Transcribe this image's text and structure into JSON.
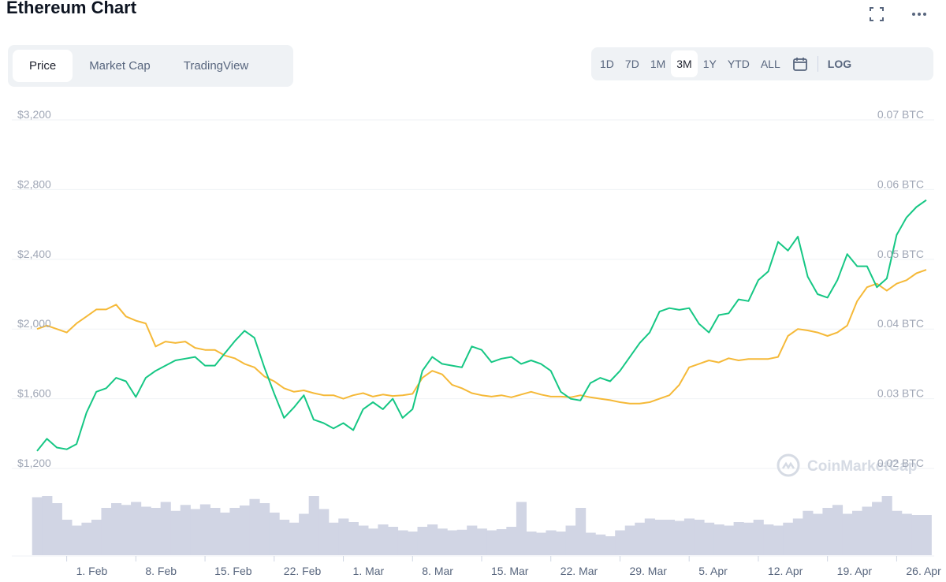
{
  "header": {
    "title": "Ethereum Chart",
    "expand_icon": "expand-icon",
    "more_icon": "more-dots-icon"
  },
  "tabs": [
    {
      "label": "Price",
      "active": true
    },
    {
      "label": "Market Cap",
      "active": false
    },
    {
      "label": "TradingView",
      "active": false
    }
  ],
  "ranges": [
    {
      "label": "1D",
      "active": false
    },
    {
      "label": "7D",
      "active": false
    },
    {
      "label": "1M",
      "active": false
    },
    {
      "label": "3M",
      "active": true
    },
    {
      "label": "1Y",
      "active": false
    },
    {
      "label": "YTD",
      "active": false
    },
    {
      "label": "ALL",
      "active": false
    }
  ],
  "calendar_icon": "calendar-icon",
  "log_label": "LOG",
  "watermark": "CoinMarketCap",
  "colors": {
    "price_line": "#16c784",
    "btc_line": "#f5b938",
    "volume_bars": "#d1d5e4",
    "grid": "#eff2f5"
  },
  "chart_data": {
    "type": "line",
    "grid": true,
    "x_tick_labels": [
      "1. Feb",
      "8. Feb",
      "15. Feb",
      "22. Feb",
      "1. Mar",
      "8. Mar",
      "15. Mar",
      "22. Mar",
      "29. Mar",
      "5. Apr",
      "12. Apr",
      "19. Apr",
      "26. Apr"
    ],
    "x_range": [
      "2021-01-29",
      "2021-04-29"
    ],
    "y_left": {
      "ticks": [
        "$1,200",
        "$1,600",
        "$2,000",
        "$2,400",
        "$2,800",
        "$3,200"
      ],
      "range": [
        1200,
        3200
      ]
    },
    "y_right": {
      "ticks": [
        "0.02 BTC",
        "0.03 BTC",
        "0.04 BTC",
        "0.05 BTC",
        "0.06 BTC",
        "0.07 BTC"
      ],
      "range": [
        0.02,
        0.07
      ]
    },
    "series": [
      {
        "axis": "left",
        "x": [
          "2021-01-29",
          "2021-01-30",
          "2021-01-31",
          "2021-02-01",
          "2021-02-02",
          "2021-02-03",
          "2021-02-04",
          "2021-02-05",
          "2021-02-06",
          "2021-02-07",
          "2021-02-08",
          "2021-02-09",
          "2021-02-10",
          "2021-02-11",
          "2021-02-12",
          "2021-02-13",
          "2021-02-14",
          "2021-02-15",
          "2021-02-16",
          "2021-02-17",
          "2021-02-18",
          "2021-02-19",
          "2021-02-20",
          "2021-02-21",
          "2021-02-22",
          "2021-02-23",
          "2021-02-24",
          "2021-02-25",
          "2021-02-26",
          "2021-02-27",
          "2021-02-28",
          "2021-03-01",
          "2021-03-02",
          "2021-03-03",
          "2021-03-04",
          "2021-03-05",
          "2021-03-06",
          "2021-03-07",
          "2021-03-08",
          "2021-03-09",
          "2021-03-10",
          "2021-03-11",
          "2021-03-12",
          "2021-03-13",
          "2021-03-14",
          "2021-03-15",
          "2021-03-16",
          "2021-03-17",
          "2021-03-18",
          "2021-03-19",
          "2021-03-20",
          "2021-03-21",
          "2021-03-22",
          "2021-03-23",
          "2021-03-24",
          "2021-03-25",
          "2021-03-26",
          "2021-03-27",
          "2021-03-28",
          "2021-03-29",
          "2021-03-30",
          "2021-03-31",
          "2021-04-01",
          "2021-04-02",
          "2021-04-03",
          "2021-04-04",
          "2021-04-05",
          "2021-04-06",
          "2021-04-07",
          "2021-04-08",
          "2021-04-09",
          "2021-04-10",
          "2021-04-11",
          "2021-04-12",
          "2021-04-13",
          "2021-04-14",
          "2021-04-15",
          "2021-04-16",
          "2021-04-17",
          "2021-04-18",
          "2021-04-19",
          "2021-04-20",
          "2021-04-21",
          "2021-04-22",
          "2021-04-23",
          "2021-04-24",
          "2021-04-25",
          "2021-04-26",
          "2021-04-27",
          "2021-04-28",
          "2021-04-29"
        ],
        "y": [
          1300,
          1370,
          1320,
          1310,
          1340,
          1520,
          1640,
          1660,
          1720,
          1700,
          1610,
          1720,
          1760,
          1790,
          1820,
          1830,
          1840,
          1790,
          1790,
          1860,
          1930,
          1990,
          1950,
          1780,
          1630,
          1490,
          1550,
          1620,
          1480,
          1460,
          1430,
          1460,
          1420,
          1540,
          1580,
          1540,
          1600,
          1490,
          1540,
          1760,
          1840,
          1800,
          1790,
          1780,
          1900,
          1880,
          1810,
          1830,
          1840,
          1800,
          1820,
          1800,
          1760,
          1640,
          1600,
          1590,
          1690,
          1720,
          1700,
          1760,
          1840,
          1920,
          1980,
          2100,
          2120,
          2110,
          2120,
          2030,
          1980,
          2080,
          2090,
          2170,
          2160,
          2280,
          2330,
          2500,
          2450,
          2530,
          2300,
          2200,
          2180,
          2280,
          2430,
          2360,
          2360,
          2240,
          2290,
          2540,
          2640,
          2700,
          2740
        ]
      },
      {
        "axis": "right",
        "x": [
          "2021-01-29",
          "2021-01-30",
          "2021-01-31",
          "2021-02-01",
          "2021-02-02",
          "2021-02-03",
          "2021-02-04",
          "2021-02-05",
          "2021-02-06",
          "2021-02-07",
          "2021-02-08",
          "2021-02-09",
          "2021-02-10",
          "2021-02-11",
          "2021-02-12",
          "2021-02-13",
          "2021-02-14",
          "2021-02-15",
          "2021-02-16",
          "2021-02-17",
          "2021-02-18",
          "2021-02-19",
          "2021-02-20",
          "2021-02-21",
          "2021-02-22",
          "2021-02-23",
          "2021-02-24",
          "2021-02-25",
          "2021-02-26",
          "2021-02-27",
          "2021-02-28",
          "2021-03-01",
          "2021-03-02",
          "2021-03-03",
          "2021-03-04",
          "2021-03-05",
          "2021-03-06",
          "2021-03-07",
          "2021-03-08",
          "2021-03-09",
          "2021-03-10",
          "2021-03-11",
          "2021-03-12",
          "2021-03-13",
          "2021-03-14",
          "2021-03-15",
          "2021-03-16",
          "2021-03-17",
          "2021-03-18",
          "2021-03-19",
          "2021-03-20",
          "2021-03-21",
          "2021-03-22",
          "2021-03-23",
          "2021-03-24",
          "2021-03-25",
          "2021-03-26",
          "2021-03-27",
          "2021-03-28",
          "2021-03-29",
          "2021-03-30",
          "2021-03-31",
          "2021-04-01",
          "2021-04-02",
          "2021-04-03",
          "2021-04-04",
          "2021-04-05",
          "2021-04-06",
          "2021-04-07",
          "2021-04-08",
          "2021-04-09",
          "2021-04-10",
          "2021-04-11",
          "2021-04-12",
          "2021-04-13",
          "2021-04-14",
          "2021-04-15",
          "2021-04-16",
          "2021-04-17",
          "2021-04-18",
          "2021-04-19",
          "2021-04-20",
          "2021-04-21",
          "2021-04-22",
          "2021-04-23",
          "2021-04-24",
          "2021-04-25",
          "2021-04-26",
          "2021-04-27",
          "2021-04-28",
          "2021-04-29"
        ],
        "y": [
          0.04,
          0.0405,
          0.04,
          0.0395,
          0.0408,
          0.0418,
          0.0428,
          0.0428,
          0.0435,
          0.0418,
          0.0412,
          0.0408,
          0.0375,
          0.0382,
          0.038,
          0.0382,
          0.0373,
          0.037,
          0.037,
          0.0362,
          0.0358,
          0.035,
          0.0345,
          0.0332,
          0.0325,
          0.0315,
          0.031,
          0.0312,
          0.0308,
          0.0305,
          0.0305,
          0.03,
          0.0305,
          0.0308,
          0.0303,
          0.0306,
          0.0304,
          0.0305,
          0.0307,
          0.033,
          0.034,
          0.0335,
          0.032,
          0.0315,
          0.0308,
          0.0305,
          0.0303,
          0.0305,
          0.0302,
          0.0306,
          0.031,
          0.0306,
          0.0303,
          0.0303,
          0.0302,
          0.0305,
          0.0302,
          0.03,
          0.0298,
          0.0295,
          0.0293,
          0.0293,
          0.0295,
          0.03,
          0.0305,
          0.032,
          0.0345,
          0.035,
          0.0355,
          0.0352,
          0.0358,
          0.0355,
          0.0357,
          0.0357,
          0.0357,
          0.036,
          0.039,
          0.04,
          0.0398,
          0.0395,
          0.039,
          0.0395,
          0.0405,
          0.044,
          0.046,
          0.0465,
          0.0455,
          0.0465,
          0.047,
          0.048,
          0.0485
        ]
      }
    ],
    "volume_relative": [
      0.98,
      1.0,
      0.88,
      0.6,
      0.5,
      0.55,
      0.6,
      0.8,
      0.88,
      0.85,
      0.9,
      0.82,
      0.8,
      0.9,
      0.75,
      0.85,
      0.78,
      0.86,
      0.8,
      0.72,
      0.8,
      0.84,
      0.95,
      0.88,
      0.72,
      0.6,
      0.55,
      0.7,
      1.0,
      0.78,
      0.55,
      0.62,
      0.56,
      0.5,
      0.45,
      0.52,
      0.48,
      0.42,
      0.4,
      0.48,
      0.52,
      0.45,
      0.42,
      0.43,
      0.5,
      0.45,
      0.42,
      0.44,
      0.48,
      0.9,
      0.4,
      0.38,
      0.42,
      0.4,
      0.5,
      0.8,
      0.38,
      0.35,
      0.32,
      0.42,
      0.5,
      0.55,
      0.62,
      0.6,
      0.6,
      0.58,
      0.62,
      0.6,
      0.55,
      0.52,
      0.5,
      0.56,
      0.55,
      0.6,
      0.52,
      0.5,
      0.55,
      0.62,
      0.75,
      0.7,
      0.8,
      0.85,
      0.7,
      0.75,
      0.82,
      0.9,
      1.0,
      0.75,
      0.7,
      0.68,
      0.68
    ]
  }
}
